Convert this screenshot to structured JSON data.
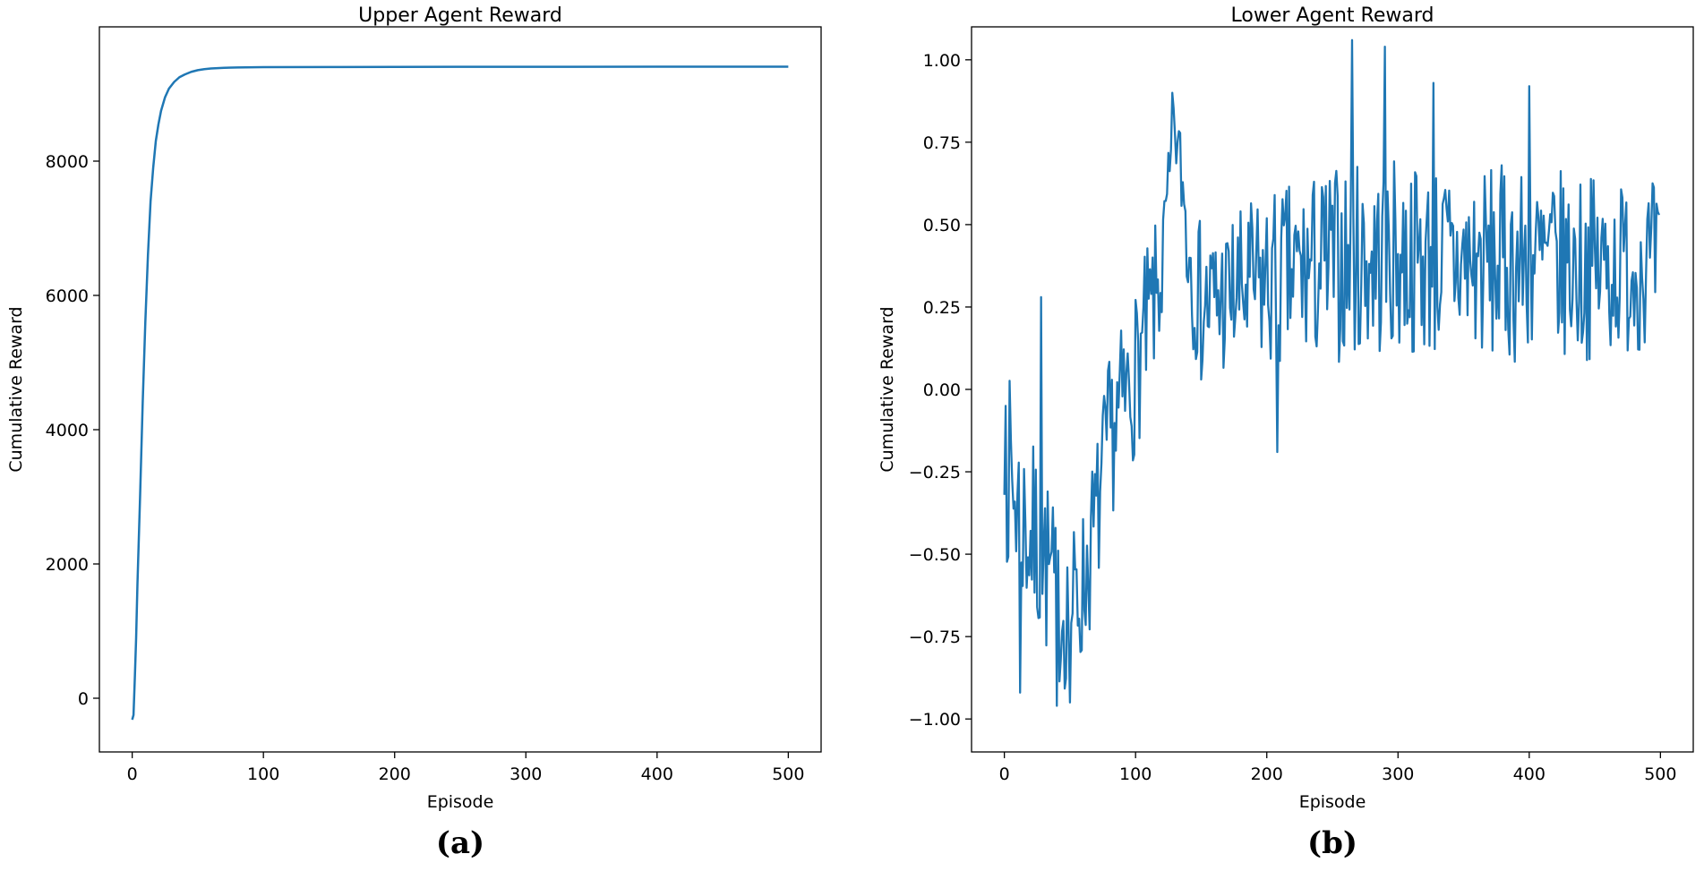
{
  "colors": {
    "line": "#1f77b4",
    "axes": "#000000",
    "background": "#ffffff"
  },
  "chart_data": [
    {
      "type": "line",
      "panel_label": "(a)",
      "title": "Upper Agent Reward",
      "xlabel": "Episode",
      "ylabel": "Cumulative Reward",
      "xlim": [
        -25,
        525
      ],
      "ylim": [
        -800,
        10000
      ],
      "xticks": [
        0,
        100,
        200,
        300,
        400,
        500
      ],
      "yticks": [
        0,
        2000,
        4000,
        6000,
        8000
      ],
      "xtick_labels": [
        "0",
        "100",
        "200",
        "300",
        "400",
        "500"
      ],
      "ytick_labels": [
        "0",
        "2000",
        "4000",
        "6000",
        "8000"
      ],
      "grid": false,
      "series": [
        {
          "name": "Upper Agent Reward",
          "x": [
            0,
            1,
            2,
            3,
            4,
            6,
            8,
            10,
            12,
            14,
            16,
            18,
            20,
            22,
            25,
            28,
            32,
            36,
            40,
            45,
            50,
            55,
            60,
            70,
            80,
            100,
            150,
            200,
            300,
            400,
            500
          ],
          "y": [
            -320,
            -250,
            300,
            900,
            1700,
            3000,
            4400,
            5600,
            6600,
            7400,
            7900,
            8300,
            8550,
            8750,
            8950,
            9080,
            9180,
            9250,
            9290,
            9330,
            9355,
            9370,
            9380,
            9390,
            9395,
            9400,
            9402,
            9404,
            9405,
            9406,
            9406
          ]
        }
      ]
    },
    {
      "type": "line",
      "panel_label": "(b)",
      "title": "Lower Agent Reward",
      "xlabel": "Episode",
      "ylabel": "Cumulative Reward",
      "xlim": [
        -25,
        525
      ],
      "ylim": [
        -1.1,
        1.1
      ],
      "xticks": [
        0,
        100,
        200,
        300,
        400,
        500
      ],
      "yticks": [
        -1.0,
        -0.75,
        -0.5,
        -0.25,
        0.0,
        0.25,
        0.5,
        0.75,
        1.0
      ],
      "xtick_labels": [
        "0",
        "100",
        "200",
        "300",
        "400",
        "500"
      ],
      "ytick_labels": [
        "−1.00",
        "−0.75",
        "−0.50",
        "−0.25",
        "0.00",
        "0.25",
        "0.50",
        "0.75",
        "1.00"
      ],
      "grid": false,
      "series": [
        {
          "name": "Lower Agent Reward",
          "generator": "noisy",
          "points": 500,
          "noise_seed": 7,
          "trend_x": [
            0,
            10,
            20,
            30,
            40,
            50,
            60,
            70,
            80,
            90,
            100,
            110,
            120,
            125,
            130,
            135,
            140,
            150,
            170,
            200,
            250,
            300,
            350,
            400,
            450,
            500
          ],
          "trend_y": [
            -0.2,
            -0.35,
            -0.45,
            -0.5,
            -0.65,
            -0.68,
            -0.6,
            -0.4,
            -0.15,
            -0.05,
            0.05,
            0.2,
            0.35,
            0.6,
            0.78,
            0.65,
            0.45,
            0.25,
            0.28,
            0.32,
            0.38,
            0.4,
            0.38,
            0.38,
            0.37,
            0.38
          ],
          "noise_amplitude": [
            0.3,
            0.3,
            0.3,
            0.3,
            0.25,
            0.25,
            0.25,
            0.25,
            0.25,
            0.25,
            0.25,
            0.25,
            0.2,
            0.12,
            0.12,
            0.15,
            0.25,
            0.25,
            0.25,
            0.28,
            0.3,
            0.3,
            0.3,
            0.3,
            0.28,
            0.25
          ],
          "y_clip": [
            -0.96,
            1.06
          ],
          "anchors": [
            {
              "x": 0,
              "y": -0.32
            },
            {
              "x": 1,
              "y": -0.05
            },
            {
              "x": 12,
              "y": -0.92
            },
            {
              "x": 28,
              "y": 0.28
            },
            {
              "x": 40,
              "y": -0.96
            },
            {
              "x": 50,
              "y": -0.95
            },
            {
              "x": 128,
              "y": 0.9
            },
            {
              "x": 265,
              "y": 1.06
            },
            {
              "x": 290,
              "y": 1.04
            },
            {
              "x": 327,
              "y": 0.93
            },
            {
              "x": 208,
              "y": -0.19
            },
            {
              "x": 400,
              "y": 0.92
            }
          ]
        }
      ]
    }
  ]
}
